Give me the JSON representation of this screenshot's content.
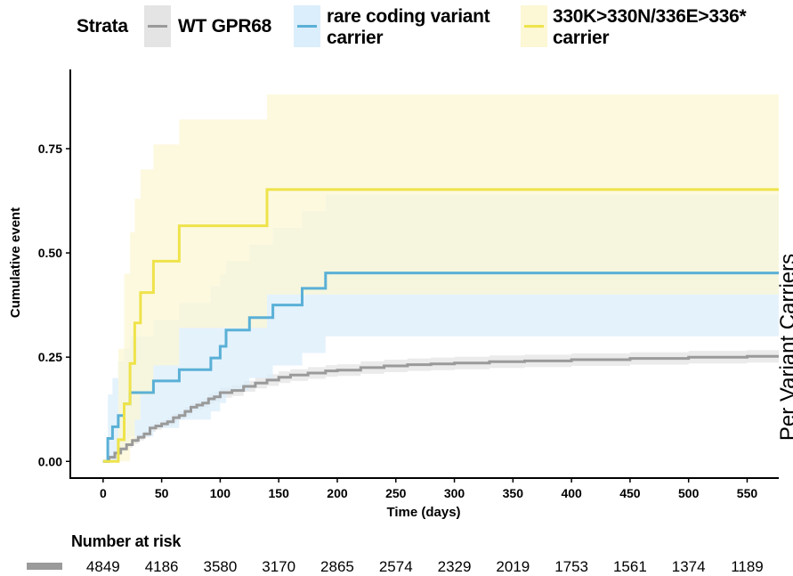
{
  "legend": {
    "title": "Strata",
    "items": [
      {
        "label_line1": "WT GPR68",
        "label_line2": "",
        "color": "#9a9a9a",
        "fill": "#e4e4e4"
      },
      {
        "label_line1": "rare coding variant",
        "label_line2": "carrier",
        "color": "#5ab0d6",
        "fill": "#dbeefb"
      },
      {
        "label_line1": "330K>330N/336E>336*",
        "label_line2": "carrier",
        "color": "#eee34a",
        "fill": "#fcf7d4"
      }
    ]
  },
  "side_title": "Per Variant Carriers",
  "risk_table": {
    "title": "Number at risk",
    "values": [
      "4849",
      "4186",
      "3580",
      "3170",
      "2865",
      "2574",
      "2329",
      "2019",
      "1753",
      "1561",
      "1374",
      "1189"
    ]
  },
  "chart_data": {
    "type": "line",
    "step": true,
    "xlabel": "Time (days)",
    "ylabel": "Cumulative event",
    "xlim": [
      -28,
      577
    ],
    "ylim": [
      -0.04,
      0.94
    ],
    "xticks": [
      0,
      50,
      100,
      150,
      200,
      250,
      300,
      350,
      400,
      450,
      500,
      550
    ],
    "yticks": [
      0.0,
      0.25,
      0.5,
      0.75
    ],
    "ytick_labels": [
      "0.00",
      "0.25",
      "0.50",
      "0.75"
    ],
    "grid": false,
    "series": [
      {
        "name": "WT GPR68",
        "color": "#9a9a9a",
        "band": "#e4e4e4",
        "x": [
          0,
          5,
          10,
          15,
          20,
          25,
          30,
          35,
          40,
          45,
          50,
          55,
          60,
          65,
          70,
          75,
          80,
          85,
          90,
          95,
          100,
          110,
          120,
          130,
          140,
          150,
          160,
          175,
          190,
          200,
          220,
          240,
          260,
          280,
          300,
          330,
          360,
          400,
          450,
          500,
          550,
          577
        ],
        "y": [
          0.0,
          0.01,
          0.02,
          0.03,
          0.04,
          0.05,
          0.058,
          0.066,
          0.08,
          0.085,
          0.09,
          0.095,
          0.105,
          0.11,
          0.12,
          0.13,
          0.135,
          0.14,
          0.15,
          0.155,
          0.165,
          0.17,
          0.18,
          0.188,
          0.195,
          0.202,
          0.207,
          0.212,
          0.217,
          0.219,
          0.225,
          0.229,
          0.232,
          0.234,
          0.236,
          0.239,
          0.241,
          0.244,
          0.247,
          0.25,
          0.252,
          0.252
        ],
        "lower": [
          0.0,
          0.005,
          0.014,
          0.023,
          0.033,
          0.042,
          0.05,
          0.058,
          0.071,
          0.076,
          0.081,
          0.086,
          0.095,
          0.1,
          0.11,
          0.12,
          0.124,
          0.129,
          0.138,
          0.143,
          0.153,
          0.157,
          0.167,
          0.175,
          0.181,
          0.188,
          0.193,
          0.198,
          0.203,
          0.205,
          0.21,
          0.214,
          0.217,
          0.219,
          0.221,
          0.224,
          0.226,
          0.229,
          0.232,
          0.235,
          0.237,
          0.237
        ],
        "upper": [
          0.0,
          0.015,
          0.026,
          0.037,
          0.047,
          0.058,
          0.066,
          0.074,
          0.089,
          0.094,
          0.099,
          0.104,
          0.115,
          0.12,
          0.13,
          0.14,
          0.146,
          0.151,
          0.162,
          0.167,
          0.177,
          0.183,
          0.193,
          0.201,
          0.209,
          0.216,
          0.221,
          0.226,
          0.231,
          0.233,
          0.24,
          0.244,
          0.247,
          0.249,
          0.251,
          0.254,
          0.256,
          0.259,
          0.262,
          0.265,
          0.267,
          0.267
        ]
      },
      {
        "name": "rare coding variant carrier",
        "color": "#5ab0d6",
        "band": "#dbeefb",
        "x": [
          0,
          4,
          8,
          13,
          18,
          23,
          43,
          65,
          92,
          100,
          105,
          125,
          145,
          170,
          190,
          577
        ],
        "y": [
          0.0,
          0.055,
          0.083,
          0.11,
          0.138,
          0.165,
          0.193,
          0.22,
          0.248,
          0.276,
          0.315,
          0.345,
          0.375,
          0.415,
          0.452,
          0.452
        ],
        "lower": [
          0.0,
          0.0,
          0.0,
          0.02,
          0.04,
          0.06,
          0.08,
          0.1,
          0.12,
          0.14,
          0.17,
          0.2,
          0.23,
          0.26,
          0.3,
          0.3
        ],
        "upper": [
          0.0,
          0.16,
          0.2,
          0.24,
          0.27,
          0.3,
          0.34,
          0.38,
          0.42,
          0.45,
          0.48,
          0.52,
          0.56,
          0.6,
          0.64,
          0.64
        ]
      },
      {
        "name": "330K>330N/336E>336* carrier",
        "color": "#eee34a",
        "band": "#fcf7d4",
        "x": [
          0,
          13,
          18,
          23,
          27,
          32,
          43,
          65,
          140,
          577
        ],
        "y": [
          0.0,
          0.052,
          0.138,
          0.235,
          0.332,
          0.405,
          0.48,
          0.565,
          0.652,
          0.652
        ],
        "lower": [
          0.0,
          0.0,
          0.0,
          0.04,
          0.1,
          0.16,
          0.23,
          0.32,
          0.4,
          0.4
        ],
        "upper": [
          0.0,
          0.27,
          0.45,
          0.55,
          0.63,
          0.7,
          0.76,
          0.82,
          0.88,
          0.88
        ]
      }
    ]
  }
}
